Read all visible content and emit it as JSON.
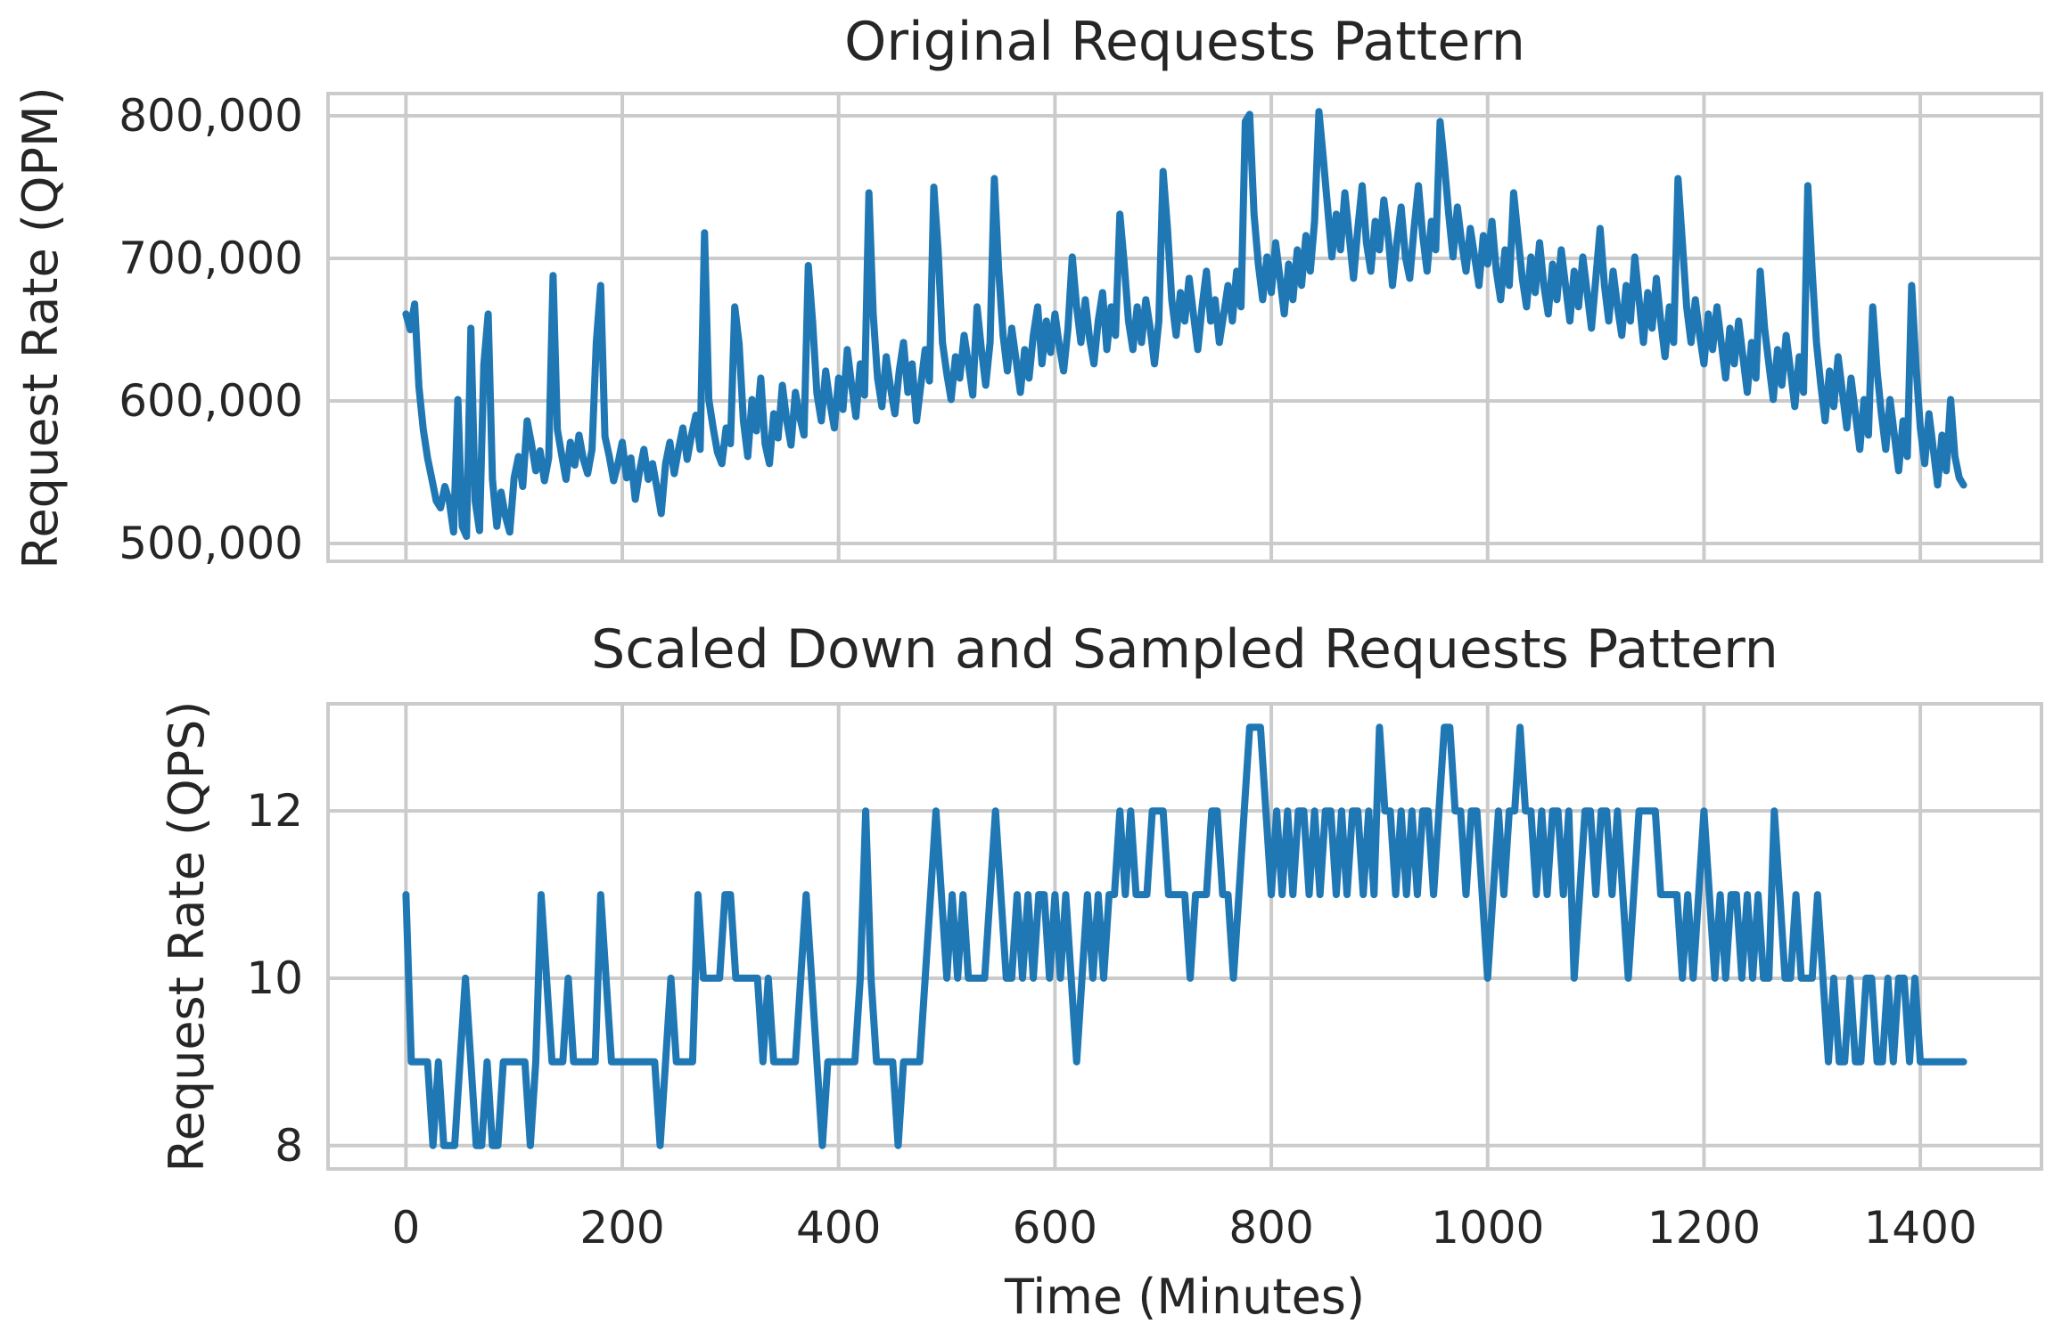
{
  "figure": {
    "background": "#ffffff",
    "colors": {
      "line": "#1f77b4",
      "grid": "#cbcbcb",
      "spine": "#cbcbcb",
      "text": "#262626"
    }
  },
  "chart_data": [
    {
      "type": "line",
      "title": "Original Requests Pattern",
      "ylabel": "Request Rate (QPM)",
      "xlabel": "",
      "grid": true,
      "legend_position": "none",
      "xlim": [
        -72,
        1512
      ],
      "ylim": [
        487500,
        815600
      ],
      "x_ticks": [
        {
          "v": 0,
          "label": "0"
        },
        {
          "v": 200,
          "label": "200"
        },
        {
          "v": 400,
          "label": "400"
        },
        {
          "v": 600,
          "label": "600"
        },
        {
          "v": 800,
          "label": "800"
        },
        {
          "v": 1000,
          "label": "1000"
        },
        {
          "v": 1200,
          "label": "1200"
        },
        {
          "v": 1400,
          "label": "1400"
        }
      ],
      "show_x_tick_labels": false,
      "y_ticks": [
        {
          "v": 500000,
          "label": "500,000"
        },
        {
          "v": 600000,
          "label": "600,000"
        },
        {
          "v": 700000,
          "label": "700,000"
        },
        {
          "v": 800000,
          "label": "800,000"
        }
      ],
      "x_start": 0,
      "x_step": 4,
      "values": [
        661000,
        650000,
        668000,
        610000,
        580000,
        560000,
        545000,
        530000,
        525000,
        540000,
        530000,
        508000,
        601000,
        512000,
        505000,
        651000,
        530000,
        509000,
        625000,
        661000,
        545000,
        512000,
        536000,
        519000,
        508000,
        546000,
        561000,
        540000,
        586000,
        570000,
        551000,
        565000,
        544000,
        560000,
        688000,
        580000,
        562000,
        545000,
        571000,
        555000,
        576000,
        559000,
        549000,
        566000,
        641000,
        681000,
        575000,
        561000,
        544000,
        556000,
        571000,
        546000,
        560000,
        531000,
        551000,
        566000,
        545000,
        556000,
        539000,
        521000,
        556000,
        571000,
        549000,
        566000,
        581000,
        559000,
        576000,
        590000,
        566000,
        718000,
        601000,
        581000,
        564000,
        556000,
        581000,
        570000,
        666000,
        640000,
        586000,
        561000,
        601000,
        579000,
        616000,
        570000,
        556000,
        591000,
        574000,
        611000,
        586000,
        569000,
        606000,
        589000,
        576000,
        695000,
        655000,
        605000,
        586000,
        621000,
        599000,
        581000,
        616000,
        594000,
        636000,
        611000,
        589000,
        626000,
        604000,
        746000,
        661000,
        616000,
        596000,
        631000,
        609000,
        591000,
        621000,
        641000,
        606000,
        626000,
        586000,
        611000,
        636000,
        614000,
        750000,
        706000,
        641000,
        619000,
        601000,
        631000,
        616000,
        646000,
        626000,
        604000,
        666000,
        636000,
        611000,
        641000,
        756000,
        691000,
        646000,
        621000,
        651000,
        629000,
        606000,
        636000,
        616000,
        646000,
        666000,
        626000,
        656000,
        634000,
        661000,
        639000,
        621000,
        651000,
        701000,
        666000,
        641000,
        671000,
        644000,
        626000,
        656000,
        676000,
        636000,
        666000,
        646000,
        731000,
        696000,
        656000,
        636000,
        666000,
        641000,
        671000,
        651000,
        626000,
        656000,
        761000,
        721000,
        671000,
        646000,
        676000,
        656000,
        686000,
        661000,
        636000,
        666000,
        691000,
        656000,
        671000,
        641000,
        661000,
        681000,
        656000,
        691000,
        666000,
        796000,
        801000,
        731000,
        696000,
        671000,
        701000,
        676000,
        711000,
        686000,
        661000,
        696000,
        671000,
        706000,
        681000,
        716000,
        691000,
        726000,
        803000,
        771000,
        736000,
        701000,
        731000,
        706000,
        746000,
        716000,
        686000,
        721000,
        751000,
        711000,
        691000,
        726000,
        706000,
        741000,
        716000,
        681000,
        711000,
        736000,
        701000,
        686000,
        721000,
        751000,
        716000,
        691000,
        726000,
        706000,
        796000,
        766000,
        731000,
        701000,
        736000,
        711000,
        691000,
        721000,
        701000,
        681000,
        716000,
        696000,
        726000,
        691000,
        671000,
        706000,
        681000,
        746000,
        716000,
        686000,
        666000,
        701000,
        676000,
        711000,
        681000,
        661000,
        696000,
        671000,
        706000,
        681000,
        656000,
        691000,
        666000,
        701000,
        676000,
        651000,
        686000,
        721000,
        681000,
        656000,
        691000,
        666000,
        646000,
        681000,
        656000,
        701000,
        671000,
        641000,
        676000,
        651000,
        686000,
        656000,
        631000,
        666000,
        641000,
        756000,
        711000,
        666000,
        641000,
        671000,
        646000,
        626000,
        661000,
        636000,
        666000,
        641000,
        616000,
        651000,
        626000,
        656000,
        631000,
        606000,
        641000,
        616000,
        691000,
        651000,
        626000,
        601000,
        636000,
        611000,
        646000,
        621000,
        596000,
        631000,
        606000,
        751000,
        691000,
        641000,
        611000,
        586000,
        621000,
        596000,
        631000,
        606000,
        581000,
        616000,
        591000,
        566000,
        601000,
        576000,
        666000,
        621000,
        591000,
        566000,
        601000,
        576000,
        551000,
        586000,
        561000,
        681000,
        625000,
        581000,
        556000,
        591000,
        566000,
        541000,
        576000,
        551000,
        601000,
        561000,
        546000,
        541000
      ]
    },
    {
      "type": "line",
      "title": "Scaled Down and Sampled Requests Pattern",
      "ylabel": "Request Rate (QPS)",
      "xlabel": "Time (Minutes)",
      "grid": true,
      "legend_position": "none",
      "xlim": [
        -72,
        1512
      ],
      "ylim": [
        7.72,
        13.28
      ],
      "x_ticks": [
        {
          "v": 0,
          "label": "0"
        },
        {
          "v": 200,
          "label": "200"
        },
        {
          "v": 400,
          "label": "400"
        },
        {
          "v": 600,
          "label": "600"
        },
        {
          "v": 800,
          "label": "800"
        },
        {
          "v": 1000,
          "label": "1000"
        },
        {
          "v": 1200,
          "label": "1200"
        },
        {
          "v": 1400,
          "label": "1400"
        }
      ],
      "show_x_tick_labels": true,
      "y_ticks": [
        {
          "v": 8,
          "label": "8"
        },
        {
          "v": 10,
          "label": "10"
        },
        {
          "v": 12,
          "label": "12"
        }
      ],
      "x_start": 0,
      "x_step": 5,
      "values": [
        11,
        9,
        9,
        9,
        9,
        8,
        9,
        8,
        8,
        8,
        9,
        10,
        9,
        8,
        8,
        9,
        8,
        8,
        9,
        9,
        9,
        9,
        9,
        8,
        9,
        11,
        10,
        9,
        9,
        9,
        10,
        9,
        9,
        9,
        9,
        9,
        11,
        10,
        9,
        9,
        9,
        9,
        9,
        9,
        9,
        9,
        9,
        8,
        9,
        10,
        9,
        9,
        9,
        9,
        11,
        10,
        10,
        10,
        10,
        11,
        11,
        10,
        10,
        10,
        10,
        10,
        9,
        10,
        9,
        9,
        9,
        9,
        9,
        10,
        11,
        10,
        9,
        8,
        9,
        9,
        9,
        9,
        9,
        9,
        10,
        12,
        10,
        9,
        9,
        9,
        9,
        8,
        9,
        9,
        9,
        9,
        10,
        11,
        12,
        11,
        10,
        11,
        10,
        11,
        10,
        10,
        10,
        10,
        11,
        12,
        11,
        10,
        10,
        11,
        10,
        11,
        10,
        11,
        11,
        10,
        11,
        10,
        11,
        10,
        9,
        10,
        11,
        10,
        11,
        10,
        11,
        11,
        12,
        11,
        12,
        11,
        11,
        11,
        12,
        12,
        12,
        11,
        11,
        11,
        11,
        10,
        11,
        11,
        11,
        12,
        12,
        11,
        11,
        10,
        11,
        12,
        13,
        13,
        13,
        12,
        11,
        12,
        11,
        12,
        11,
        12,
        12,
        11,
        12,
        11,
        12,
        12,
        11,
        12,
        11,
        12,
        12,
        11,
        12,
        11,
        13,
        12,
        12,
        11,
        12,
        11,
        12,
        11,
        12,
        12,
        11,
        12,
        13,
        13,
        12,
        12,
        11,
        12,
        12,
        11,
        10,
        11,
        12,
        11,
        12,
        12,
        13,
        12,
        12,
        11,
        12,
        11,
        12,
        12,
        11,
        12,
        10,
        11,
        12,
        12,
        11,
        12,
        12,
        11,
        12,
        11,
        10,
        11,
        12,
        12,
        12,
        12,
        11,
        11,
        11,
        11,
        10,
        11,
        10,
        11,
        12,
        11,
        10,
        11,
        10,
        11,
        11,
        10,
        11,
        10,
        11,
        10,
        10,
        12,
        11,
        10,
        10,
        11,
        10,
        10,
        10,
        11,
        10,
        9,
        10,
        9,
        9,
        10,
        9,
        9,
        10,
        10,
        9,
        9,
        10,
        9,
        10,
        10,
        9,
        10,
        9,
        9,
        9,
        9,
        9,
        9,
        9,
        9,
        9
      ]
    }
  ]
}
